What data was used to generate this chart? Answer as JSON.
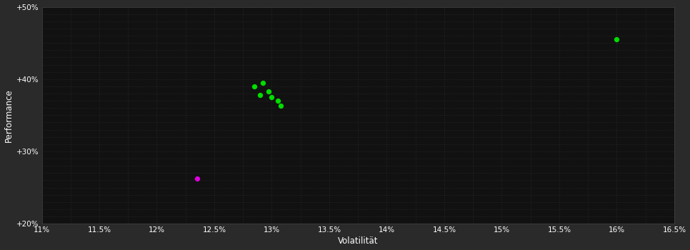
{
  "background_color": "#2a2a2a",
  "plot_bg_color": "#111111",
  "grid_color": "#444444",
  "text_color": "#ffffff",
  "xlabel": "Volatilität",
  "ylabel": "Performance",
  "xlim": [
    0.11,
    0.165
  ],
  "ylim": [
    0.2,
    0.5
  ],
  "xticks": [
    0.11,
    0.115,
    0.12,
    0.125,
    0.13,
    0.135,
    0.14,
    0.145,
    0.15,
    0.155,
    0.16,
    0.165
  ],
  "yticks": [
    0.2,
    0.3,
    0.4,
    0.5
  ],
  "minor_xticks": [
    0.1125,
    0.1175,
    0.1225,
    0.1275,
    0.1325,
    0.1375,
    0.1425,
    0.1475,
    0.1525,
    0.1575,
    0.1625
  ],
  "minor_yticks": [
    0.21,
    0.22,
    0.23,
    0.24,
    0.25,
    0.26,
    0.27,
    0.28,
    0.29,
    0.31,
    0.32,
    0.33,
    0.34,
    0.35,
    0.36,
    0.37,
    0.38,
    0.39,
    0.41,
    0.42,
    0.43,
    0.44,
    0.45,
    0.46,
    0.47,
    0.48,
    0.49
  ],
  "green_points": [
    [
      0.1285,
      0.39
    ],
    [
      0.1292,
      0.395
    ],
    [
      0.1297,
      0.383
    ],
    [
      0.13,
      0.375
    ],
    [
      0.1305,
      0.37
    ],
    [
      0.1308,
      0.363
    ],
    [
      0.129,
      0.378
    ],
    [
      0.16,
      0.455
    ]
  ],
  "magenta_points": [
    [
      0.1235,
      0.262
    ]
  ],
  "point_color_green": "#00dd00",
  "point_color_magenta": "#dd00dd",
  "point_size": 18,
  "font_size_ticks": 7.5,
  "font_size_labels": 8.5
}
